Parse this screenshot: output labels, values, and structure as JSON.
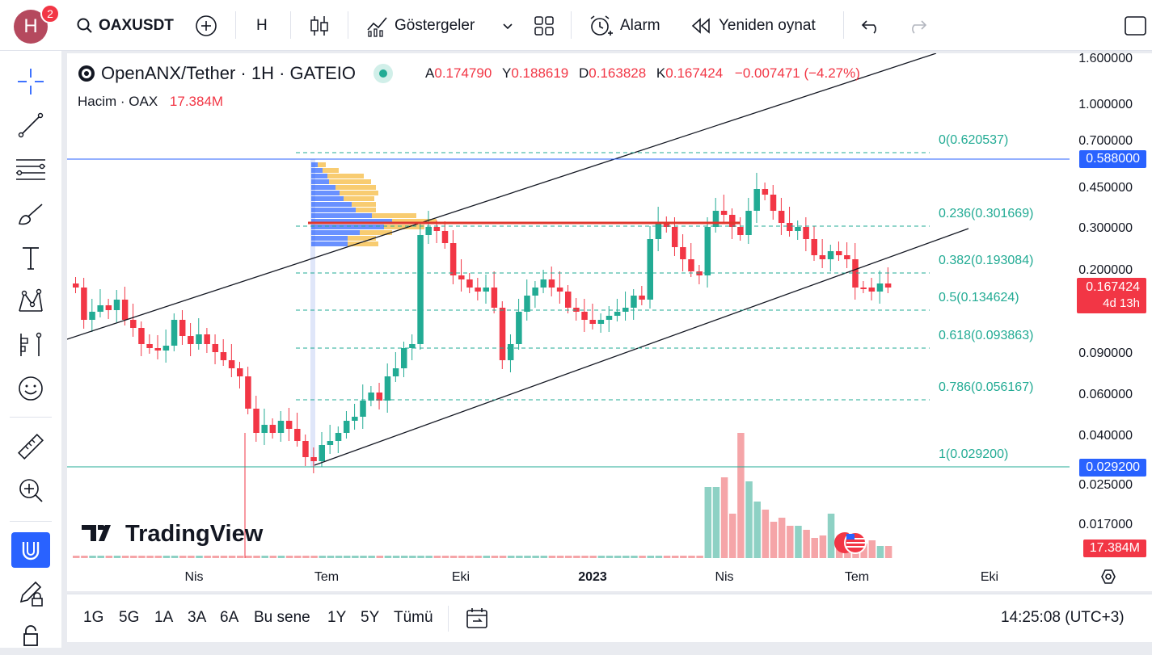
{
  "user": {
    "initial": "H",
    "notifications": "2"
  },
  "toolbar": {
    "symbol": "OAXUSDT",
    "interval": "H",
    "indicators_label": "Göstergeler",
    "alarm_label": "Alarm",
    "replay_label": "Yeniden oynat"
  },
  "legend": {
    "title": "OpenANX/Tether · 1H · GATEIO",
    "open_key": "A",
    "open": "0.174790",
    "high_key": "Y",
    "high": "0.188619",
    "low_key": "D",
    "low": "0.163828",
    "close_key": "K",
    "close": "0.167424",
    "change": "−0.007471 (−4.27%)",
    "volume_label": "Hacim · OAX",
    "volume_value": "17.384M"
  },
  "price_axis": {
    "ticks": [
      "1.600000",
      "1.000000",
      "0.700000",
      "0.450000",
      "0.300000",
      "0.200000",
      "0.090000",
      "0.060000",
      "0.040000",
      "0.025000",
      "0.017000"
    ],
    "tags": {
      "high_line": "0.588000",
      "last_price": "0.167424",
      "countdown": "4d 13h",
      "low_line": "0.029200",
      "volume": "17.384M"
    }
  },
  "fib_levels": [
    "0(0.620537)",
    "0.236(0.301669)",
    "0.382(0.193084)",
    "0.5(0.134624)",
    "0.618(0.093863)",
    "0.786(0.056167)",
    "1(0.029200)"
  ],
  "time_axis": [
    "Nis",
    "Tem",
    "Eki",
    "2023",
    "Nis",
    "Tem",
    "Eki"
  ],
  "watermark": "TradingView",
  "ranges": [
    "1G",
    "5G",
    "1A",
    "3A",
    "6A",
    "Bu sene",
    "1Y",
    "5Y",
    "Tümü"
  ],
  "clock": "14:25:08 (UTC+3)",
  "colors": {
    "up": "#22ab94",
    "down": "#f23645",
    "accent": "#2962ff",
    "fib": "#22ab94"
  }
}
